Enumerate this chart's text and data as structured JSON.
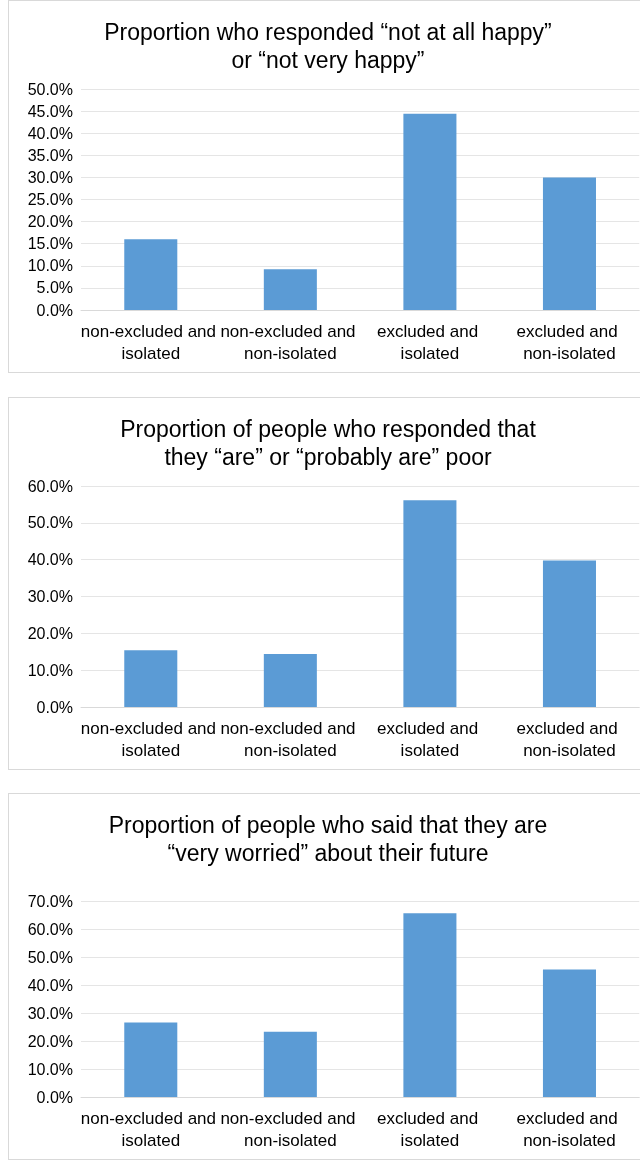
{
  "chart_data": [
    {
      "type": "bar",
      "title": "Proportion who responded “not at all happy”\nor “not very happy”",
      "categories": [
        "non-excluded and isolated",
        "non-excluded and non-isolated",
        "excluded and isolated",
        "excluded and non-isolated"
      ],
      "values": [
        16.0,
        9.2,
        44.4,
        30.0
      ],
      "color": "#5b9bd5",
      "ylim": [
        0,
        50
      ],
      "yticks": [
        {
          "value": 0,
          "label": "0.0%"
        },
        {
          "value": 5,
          "label": "5.0%"
        },
        {
          "value": 10,
          "label": "10.0%"
        },
        {
          "value": 15,
          "label": "15.0%"
        },
        {
          "value": 20,
          "label": "20.0%"
        },
        {
          "value": 25,
          "label": "25.0%"
        },
        {
          "value": 30,
          "label": "30.0%"
        },
        {
          "value": 35,
          "label": "35.0%"
        },
        {
          "value": 40,
          "label": "40.0%"
        },
        {
          "value": 45,
          "label": "45.0%"
        },
        {
          "value": 50,
          "label": "50.0%"
        }
      ],
      "grid": "y"
    },
    {
      "type": "bar",
      "title": "Proportion of people who responded that\nthey “are” or “probably are” poor",
      "categories": [
        "non-excluded and isolated",
        "non-excluded and non-isolated",
        "excluded and isolated",
        "excluded and non-isolated"
      ],
      "values": [
        15.4,
        14.4,
        56.1,
        39.8
      ],
      "color": "#5b9bd5",
      "ylim": [
        0,
        60
      ],
      "yticks": [
        {
          "value": 0,
          "label": "0.0%"
        },
        {
          "value": 10,
          "label": "10.0%"
        },
        {
          "value": 20,
          "label": "20.0%"
        },
        {
          "value": 30,
          "label": "30.0%"
        },
        {
          "value": 40,
          "label": "40.0%"
        },
        {
          "value": 50,
          "label": "50.0%"
        },
        {
          "value": 60,
          "label": "60.0%"
        }
      ],
      "grid": "y"
    },
    {
      "type": "bar",
      "title": "Proportion of people who said that they are\n“very worried” about their future",
      "categories": [
        "non-excluded and isolated",
        "non-excluded and non-isolated",
        "excluded and isolated",
        "excluded and non-isolated"
      ],
      "values": [
        26.6,
        23.3,
        65.6,
        45.5
      ],
      "color": "#5b9bd5",
      "ylim": [
        0,
        70
      ],
      "yticks": [
        {
          "value": 0,
          "label": "0.0%"
        },
        {
          "value": 10,
          "label": "10.0%"
        },
        {
          "value": 20,
          "label": "20.0%"
        },
        {
          "value": 30,
          "label": "30.0%"
        },
        {
          "value": 40,
          "label": "40.0%"
        },
        {
          "value": 50,
          "label": "50.0%"
        },
        {
          "value": 60,
          "label": "60.0%"
        },
        {
          "value": 70,
          "label": "70.0%"
        }
      ],
      "grid": "y"
    }
  ]
}
